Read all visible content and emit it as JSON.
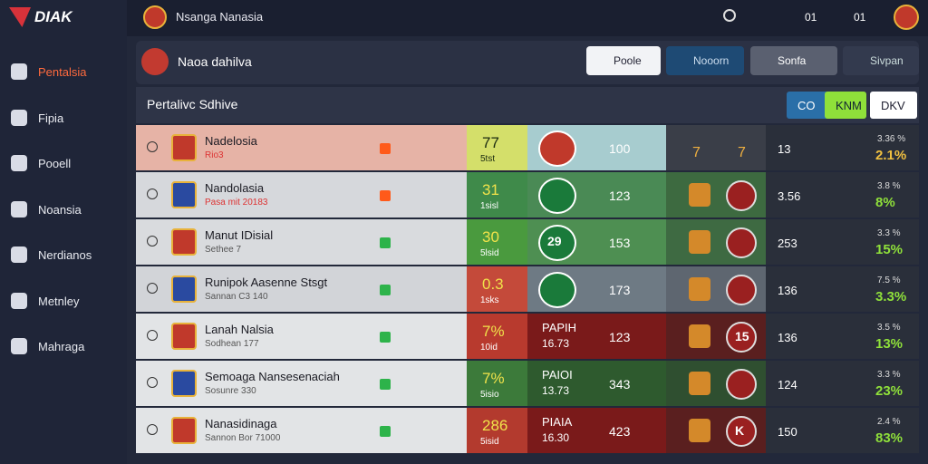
{
  "brand": "DIAK",
  "nav": [
    "Pentalsia",
    "Fipia",
    "Pooell",
    "Noansia",
    "Nerdianos",
    "Metnley",
    "Mahraga"
  ],
  "topbar": {
    "title": "Nsanga Nanasia",
    "badges": [
      "01",
      "01"
    ]
  },
  "header": {
    "title": "Naoa dahilva",
    "buttons": [
      "Poole",
      "Nooorn",
      "Sonfa",
      "Sivpan"
    ]
  },
  "table": {
    "title": "Pertalivc Sdhive",
    "tabs": [
      "CO",
      "KNM",
      "DKV"
    ],
    "rows": [
      {
        "name": "Nadelosia",
        "sub": "Rio3",
        "score": "77",
        "score_sub": "5tst",
        "mid": "100",
        "pair": [
          "7",
          "7"
        ],
        "num": "13",
        "pct_top": "3.36 %",
        "pct": "2.1%"
      },
      {
        "name": "Nandolasia",
        "sub": "Pasa mit 20183",
        "score": "31",
        "score_sub": "1sisl",
        "mid": "123",
        "num": "3.56",
        "pct_top": "3.8 %",
        "pct": "8%"
      },
      {
        "name": "Manut IDisial",
        "sub": "Sethee 7",
        "score": "30",
        "score_sub": "5lsid",
        "badge": "29",
        "mid": "153",
        "num": "253",
        "pct_top": "3.3 %",
        "pct": "15%"
      },
      {
        "name": "Runipok Aasenne Stsgt",
        "sub": "Sannan C3 140",
        "score": "0.3",
        "score_sub": "1sks",
        "mid": "173",
        "num": "136",
        "pct_top": "7.5 %",
        "pct": "3.3%"
      },
      {
        "name": "Lanah Nalsia",
        "sub": "Sodhean 177",
        "score": "7%",
        "score_sub": "10id",
        "mid_label": "PAPIH",
        "mid_sub": "16.73",
        "mid": "123",
        "badge2": "15",
        "num": "136",
        "pct_top": "3.5 %",
        "pct": "13%"
      },
      {
        "name": "Semoaga Nansesenaciah",
        "sub": "Sosunre 330",
        "score": "7%",
        "score_sub": "5isio",
        "mid_label": "PAIOI",
        "mid_sub": "13.73",
        "mid": "343",
        "num": "124",
        "pct_top": "3.3 %",
        "pct": "23%"
      },
      {
        "name": "Nanasidinaga",
        "sub": "Sannon Bor 71000",
        "score": "286",
        "score_sub": "5isid",
        "mid_label": "PIAIA",
        "mid_sub": "16.30",
        "mid": "423",
        "badge2": "K",
        "num": "150",
        "pct_top": "2.4 %",
        "pct": "83%"
      }
    ]
  }
}
